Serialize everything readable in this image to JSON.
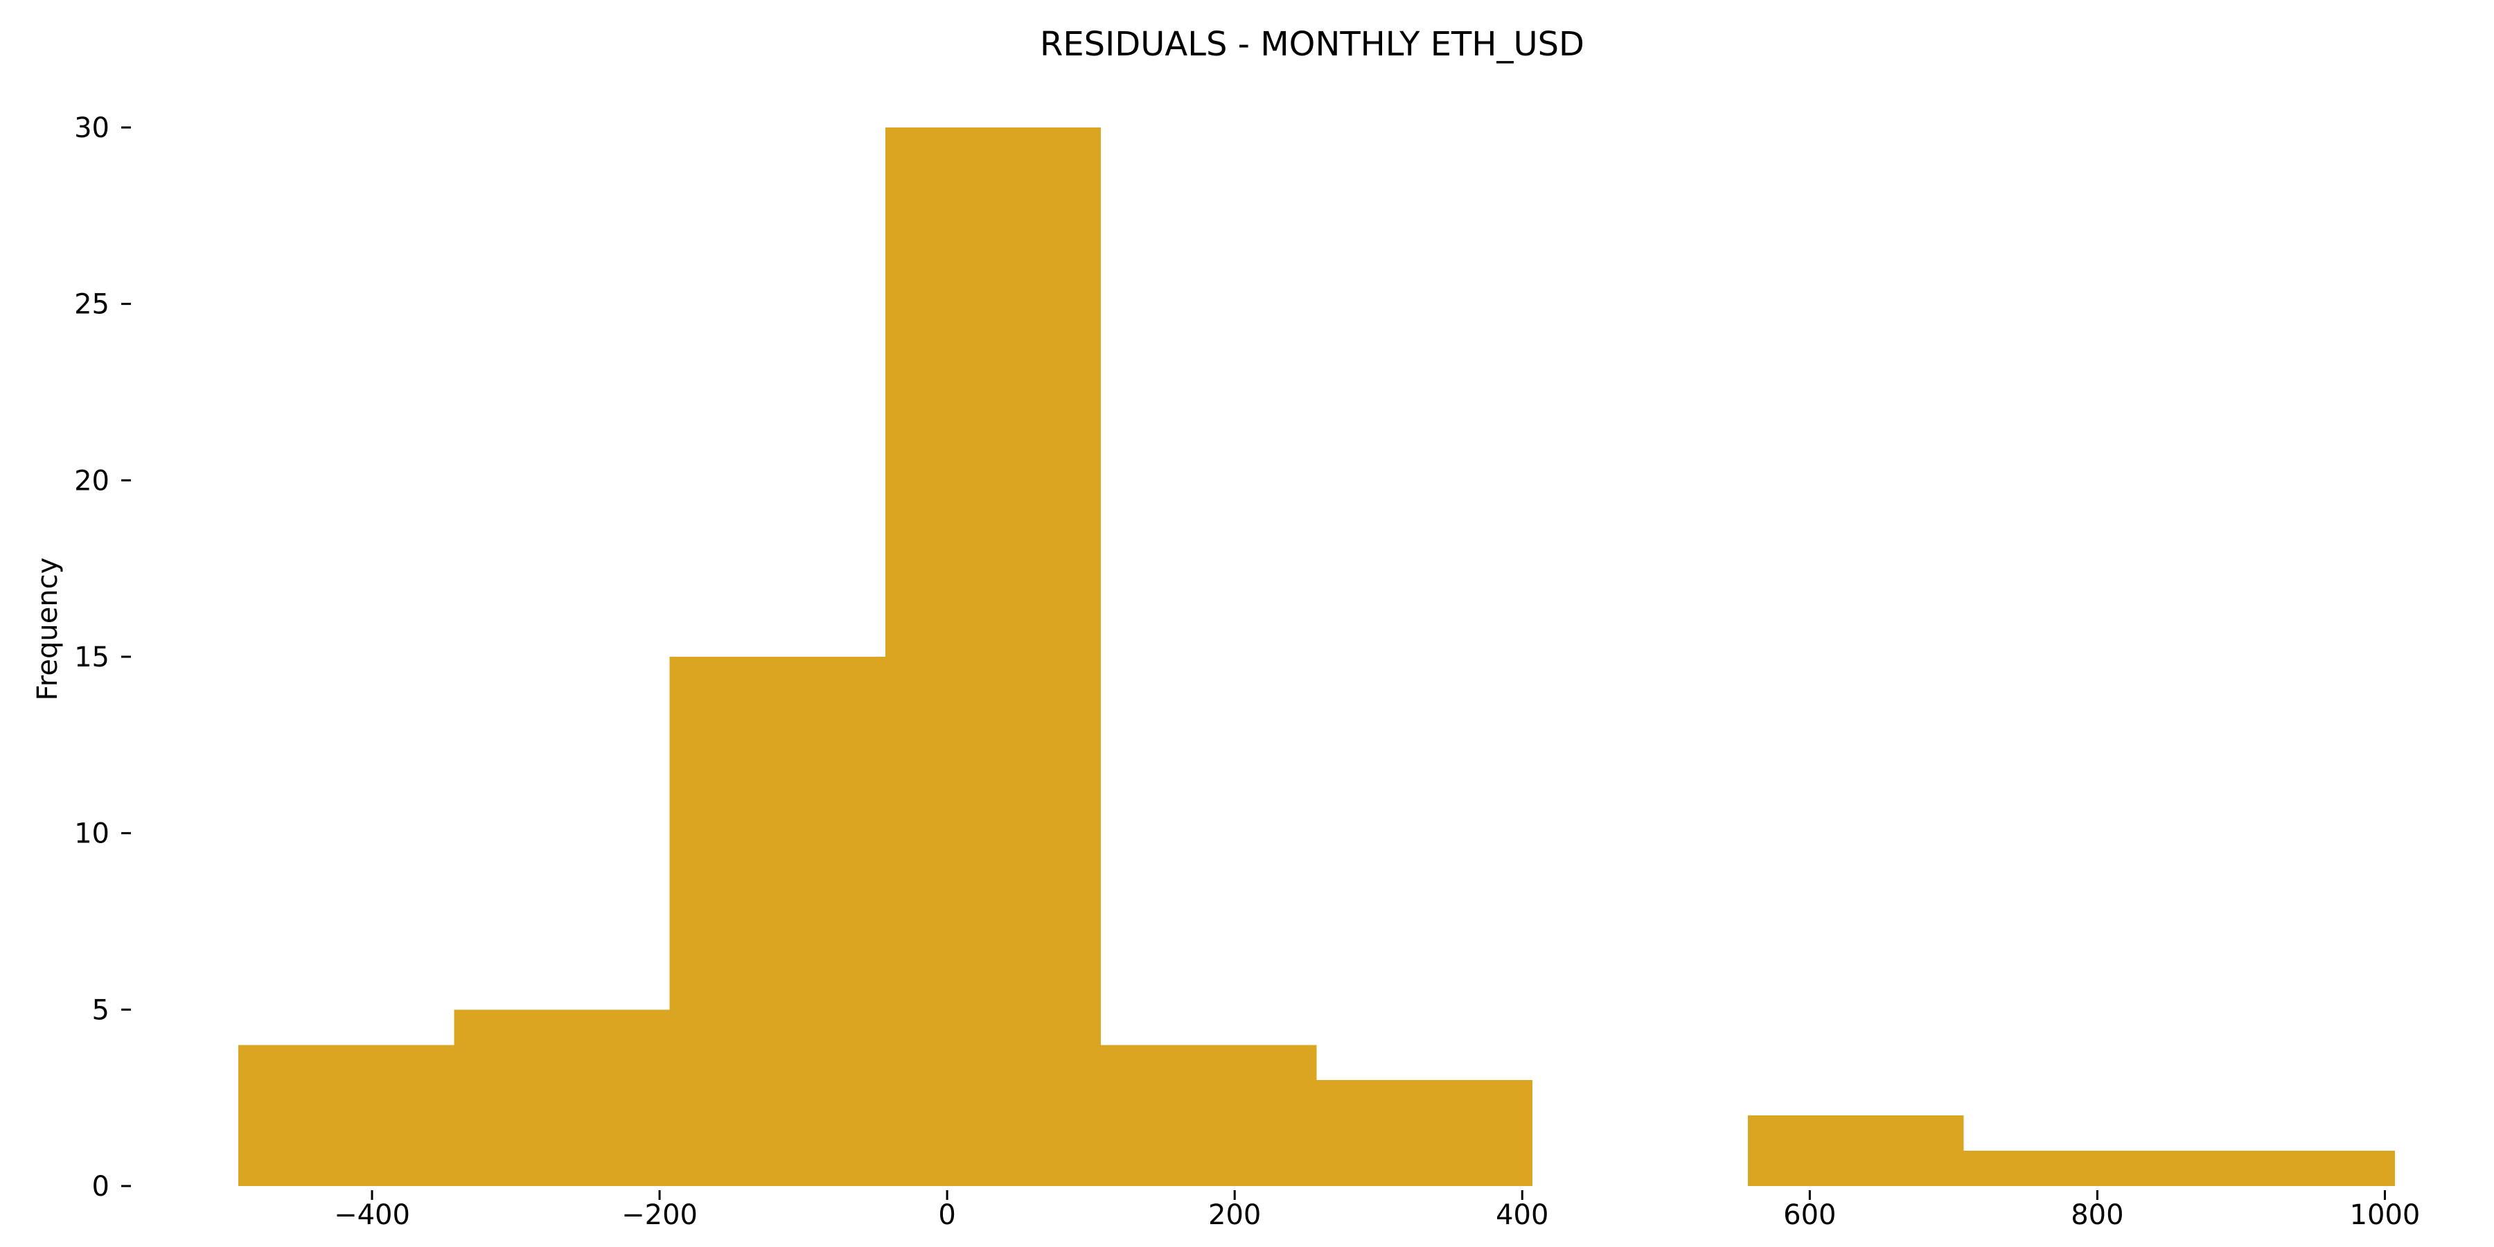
{
  "chart_data": {
    "type": "bar",
    "title": "RESIDUALS - MONTHLY ETH_USD",
    "xlabel": "",
    "ylabel": "Frequency",
    "bins": [
      {
        "x0": -493,
        "x1": -343,
        "count": 4
      },
      {
        "x0": -343,
        "x1": -193,
        "count": 5
      },
      {
        "x0": -193,
        "x1": -43,
        "count": 15
      },
      {
        "x0": -43,
        "x1": 107,
        "count": 30
      },
      {
        "x0": 107,
        "x1": 257,
        "count": 4
      },
      {
        "x0": 257,
        "x1": 407,
        "count": 3
      },
      {
        "x0": 557,
        "x1": 707,
        "count": 2
      },
      {
        "x0": 707,
        "x1": 1007,
        "count": 1
      }
    ],
    "xlim": [
      -493,
      1007
    ],
    "ylim": [
      0,
      30
    ],
    "xticks": [
      -400,
      -200,
      0,
      200,
      400,
      600,
      800,
      1000
    ],
    "xtick_labels": [
      "−400",
      "−200",
      "0",
      "200",
      "400",
      "600",
      "800",
      "1000"
    ],
    "yticks": [
      0,
      5,
      10,
      15,
      20,
      25,
      30
    ],
    "ytick_labels": [
      "0",
      "5",
      "10",
      "15",
      "20",
      "25",
      "30"
    ],
    "bar_color": "#DAA520",
    "grid": false
  }
}
